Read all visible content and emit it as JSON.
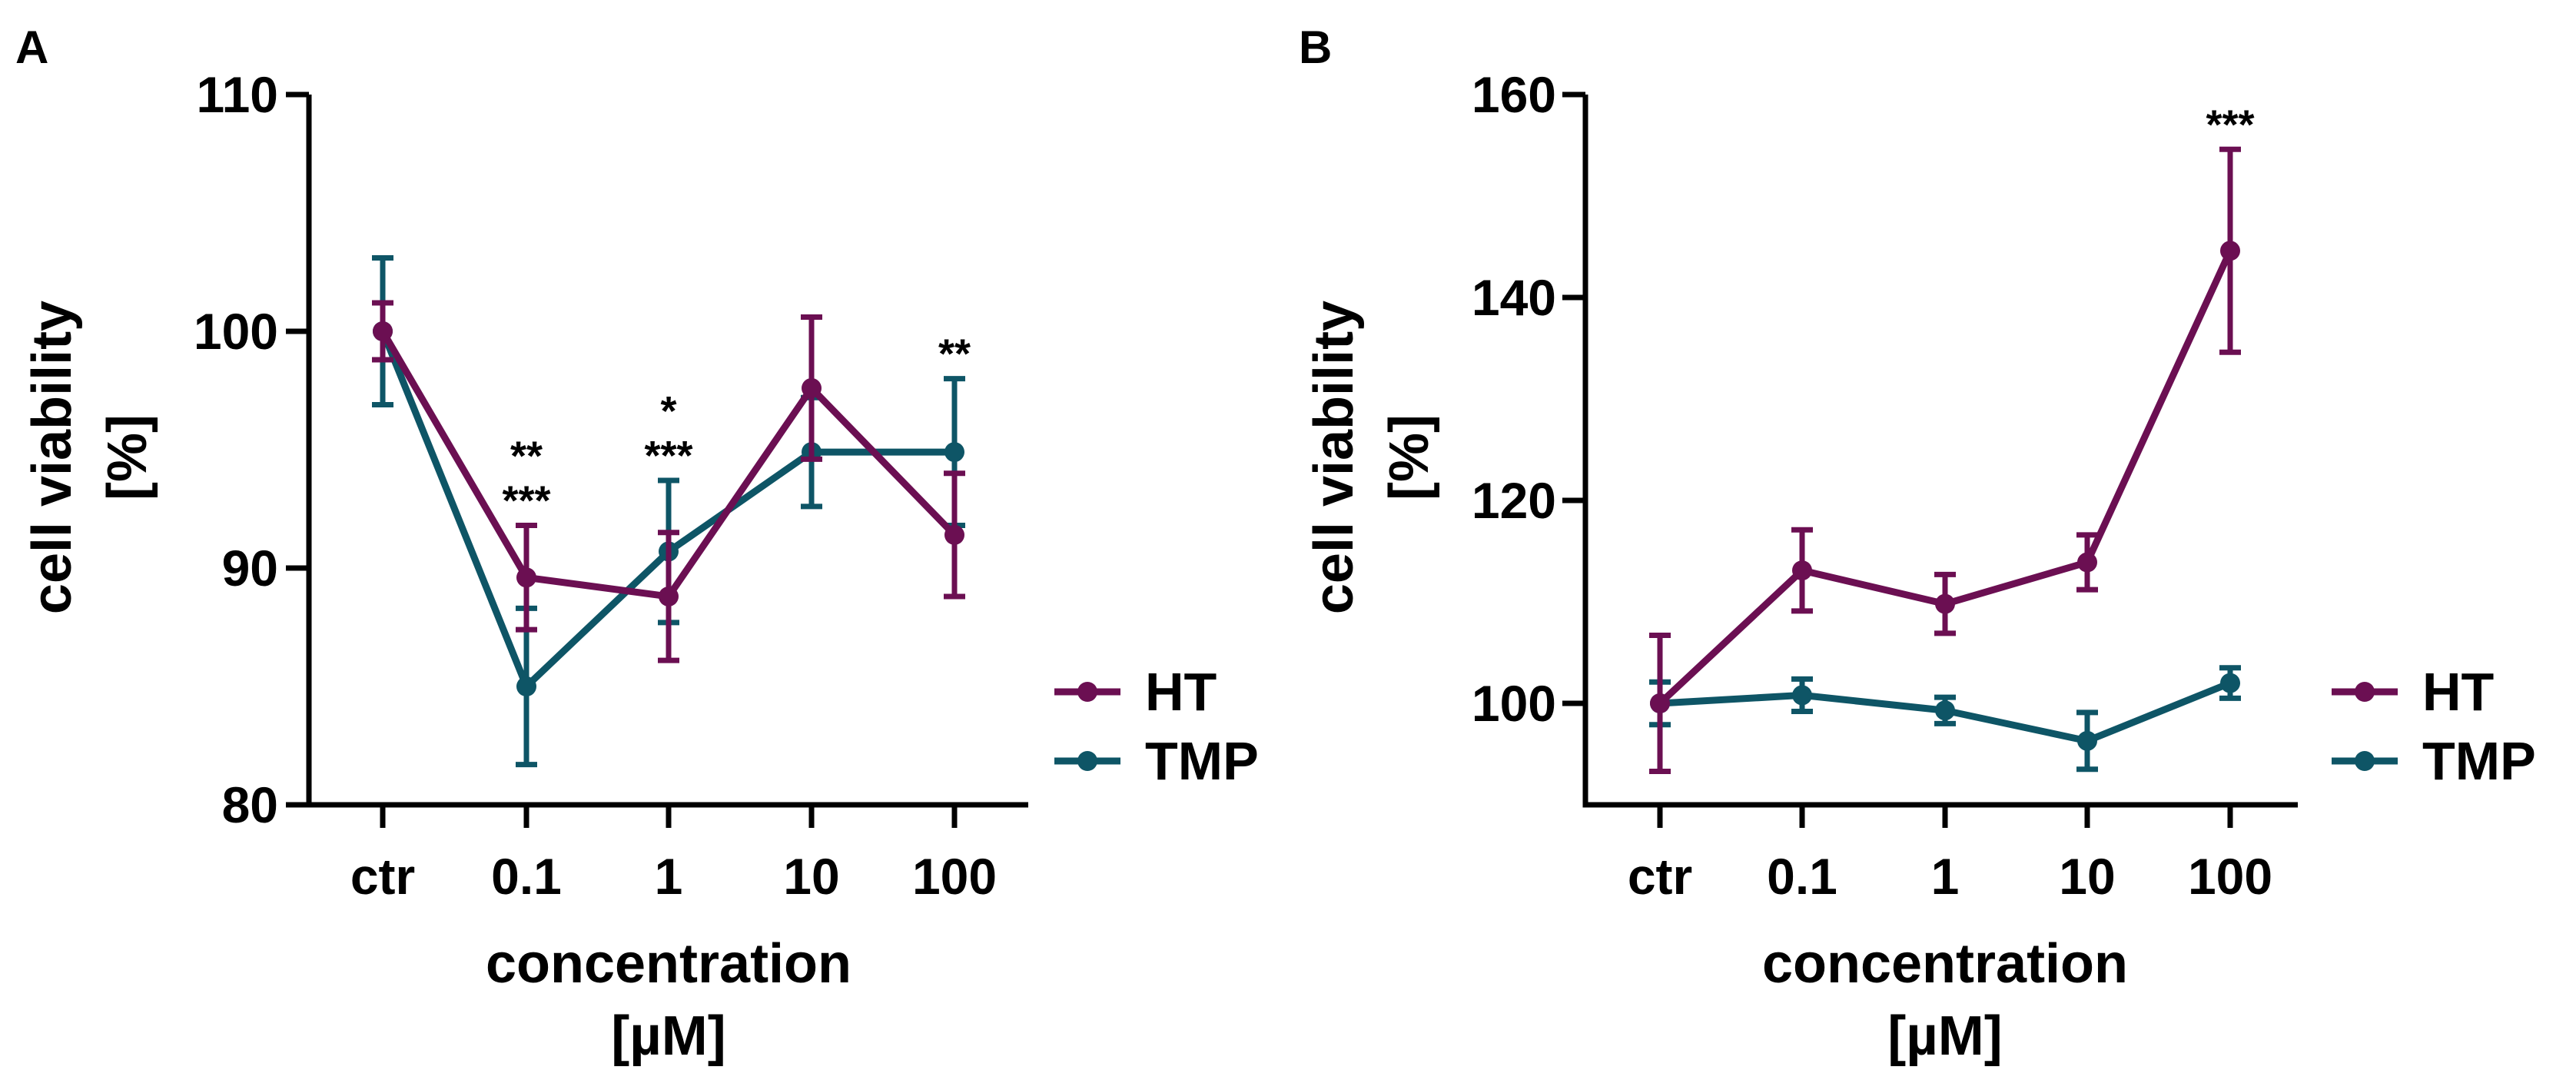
{
  "colors": {
    "HT": "#6b0f52",
    "TMP": "#0e5566",
    "axis": "#000000"
  },
  "chart_data": [
    {
      "panel": "A",
      "type": "line",
      "categories": [
        "ctr",
        "0.1",
        "1",
        "10",
        "100"
      ],
      "xlabel": [
        "concentration",
        "[µM]"
      ],
      "ylabel": [
        "cell viability",
        "[%]"
      ],
      "ylim": [
        80,
        110
      ],
      "yticks": [
        80,
        90,
        100,
        110
      ],
      "ytick_labels": [
        "80",
        "90",
        "100",
        "110"
      ],
      "legend": {
        "position": "right",
        "entries": [
          "HT",
          "TMP"
        ]
      },
      "series": [
        {
          "name": "HT",
          "color": "#6b0f52",
          "values": [
            100.0,
            89.6,
            88.8,
            97.6,
            91.4
          ],
          "errors": [
            1.2,
            2.2,
            2.7,
            3.0,
            2.6
          ]
        },
        {
          "name": "TMP",
          "color": "#0e5566",
          "values": [
            100.0,
            85.0,
            90.7,
            94.9,
            94.9
          ],
          "errors": [
            3.1,
            3.3,
            3.0,
            2.3,
            3.1
          ]
        }
      ],
      "annotations": [
        {
          "category": "0.1",
          "series": "TMP",
          "text": "**"
        },
        {
          "category": "0.1",
          "series": "HT",
          "text": "***"
        },
        {
          "category": "1",
          "series": "TMP",
          "text": "*"
        },
        {
          "category": "1",
          "series": "HT",
          "text": "***"
        },
        {
          "category": "100",
          "series": "HT",
          "text": "**"
        }
      ]
    },
    {
      "panel": "B",
      "type": "line",
      "categories": [
        "ctr",
        "0.1",
        "1",
        "10",
        "100"
      ],
      "xlabel": [
        "concentration",
        "[µM]"
      ],
      "ylabel": [
        "cell viability",
        "[%]"
      ],
      "ylim": [
        90,
        160
      ],
      "yticks": [
        100,
        120,
        140,
        160
      ],
      "ytick_labels": [
        "100",
        "120",
        "140",
        "160"
      ],
      "legend": {
        "position": "right",
        "entries": [
          "HT",
          "TMP"
        ]
      },
      "series": [
        {
          "name": "HT",
          "color": "#6b0f52",
          "values": [
            100.0,
            113.1,
            109.8,
            113.9,
            144.6
          ],
          "errors": [
            6.7,
            4.0,
            2.9,
            2.7,
            10.0
          ]
        },
        {
          "name": "TMP",
          "color": "#0e5566",
          "values": [
            100.0,
            100.8,
            99.3,
            96.3,
            102.0
          ],
          "errors": [
            2.1,
            1.6,
            1.3,
            2.8,
            1.5
          ]
        }
      ],
      "annotations": [
        {
          "category": "100",
          "series": "HT",
          "text": "***"
        }
      ]
    }
  ]
}
